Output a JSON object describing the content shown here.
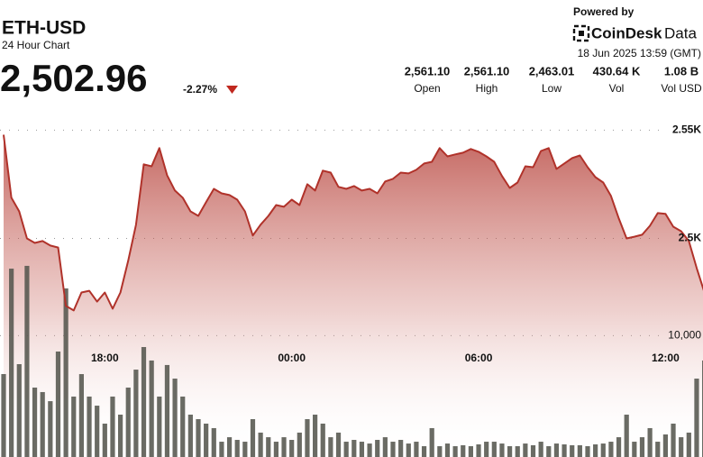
{
  "header": {
    "symbol": "ETH-USD",
    "subtitle": "24 Hour Chart",
    "price": "2,502.96",
    "change": "-2.27%",
    "powered_by": "Powered by",
    "brand": "CoinDesk",
    "brand_suffix": "Data",
    "timestamp": "18 Jun 2025 13:59 (GMT)"
  },
  "stats": [
    {
      "value": "2,561.10",
      "label": "Open"
    },
    {
      "value": "2,561.10",
      "label": "High"
    },
    {
      "value": "2,463.01",
      "label": "Low"
    },
    {
      "value": "430.64 K",
      "label": "Vol"
    },
    {
      "value": "1.08 B",
      "label": "Vol USD"
    }
  ],
  "chart_data": {
    "type": "line",
    "categories": [
      null,
      null,
      null,
      null,
      null,
      null,
      null,
      null,
      null,
      null,
      null,
      null,
      null,
      "18:00",
      null,
      null,
      null,
      null,
      null,
      null,
      null,
      null,
      null,
      null,
      null,
      null,
      null,
      null,
      null,
      null,
      null,
      null,
      null,
      null,
      null,
      null,
      null,
      "00:00",
      null,
      null,
      null,
      null,
      null,
      null,
      null,
      null,
      null,
      null,
      null,
      null,
      null,
      null,
      null,
      null,
      null,
      null,
      null,
      null,
      null,
      null,
      null,
      "06:00",
      null,
      null,
      null,
      null,
      null,
      null,
      null,
      null,
      null,
      null,
      null,
      null,
      null,
      null,
      null,
      null,
      null,
      null,
      null,
      null,
      null,
      null,
      null,
      "12:00",
      null,
      null,
      null,
      null,
      null
    ],
    "series": [
      {
        "type": "line",
        "color": "#b0322a",
        "values": [
          2547.9,
          2518.8,
          2512.5,
          2500,
          2497.9,
          2498.8,
          2496.7,
          2495.8,
          2468.8,
          2466.7,
          2475,
          2475.8,
          2470.8,
          2475,
          2467.5,
          2475,
          2489.6,
          2506.3,
          2534.2,
          2533.3,
          2541.7,
          2529.2,
          2522.1,
          2518.8,
          2512.5,
          2510.4,
          2516.7,
          2522.9,
          2520.8,
          2520,
          2517.9,
          2512.5,
          2501.3,
          2506.3,
          2510.4,
          2515.4,
          2514.6,
          2517.9,
          2515.4,
          2525,
          2522.1,
          2531.3,
          2530.4,
          2523.8,
          2522.9,
          2524.2,
          2522.1,
          2522.9,
          2520.8,
          2526.3,
          2527.5,
          2530.4,
          2530,
          2531.7,
          2534.6,
          2535.4,
          2541.7,
          2537.9,
          2538.8,
          2539.6,
          2541.3,
          2540,
          2537.9,
          2535.4,
          2528.8,
          2523.3,
          2525.8,
          2533.3,
          2532.9,
          2540.4,
          2541.7,
          2532.1,
          2534.6,
          2537.1,
          2538.3,
          2532.9,
          2528.3,
          2525.8,
          2519.6,
          2509.2,
          2500,
          2500.8,
          2501.7,
          2505.8,
          2511.7,
          2511.3,
          2505.4,
          2503.3,
          2498.8,
          2486.3,
          2475
        ]
      },
      {
        "type": "bar",
        "axis": "y2",
        "color": "#55574f",
        "values": [
          6834,
          15520,
          7650,
          15750,
          5720,
          5350,
          4600,
          8690,
          13890,
          4980,
          6830,
          4980,
          4230,
          2750,
          4980,
          3490,
          5720,
          7200,
          9060,
          7950,
          4980,
          7580,
          6460,
          4980,
          3490,
          3120,
          2750,
          2380,
          1260,
          1630,
          1410,
          1260,
          3120,
          2010,
          1630,
          1260,
          1630,
          1410,
          2010,
          3120,
          3490,
          2750,
          1630,
          2010,
          1260,
          1410,
          1260,
          1110,
          1410,
          1630,
          1260,
          1410,
          1110,
          1260,
          890,
          2380,
          890,
          1110,
          890,
          970,
          890,
          1040,
          1260,
          1260,
          1110,
          890,
          890,
          1110,
          970,
          1260,
          890,
          1110,
          1040,
          970,
          970,
          890,
          1040,
          1110,
          1260,
          1630,
          3490,
          1260,
          1630,
          2380,
          1260,
          1860,
          2750,
          1630,
          2010,
          6460,
          7950
        ]
      }
    ],
    "ylim": [
      2399,
      2556
    ],
    "yticks": [
      {
        "value": 2500,
        "label": "2.5K"
      },
      {
        "value": 2550,
        "label": "2.55K"
      }
    ],
    "y2lim": [
      0,
      28000
    ],
    "y2ticks": [
      {
        "value": 10000,
        "label": "10,000"
      }
    ],
    "grid": true
  }
}
